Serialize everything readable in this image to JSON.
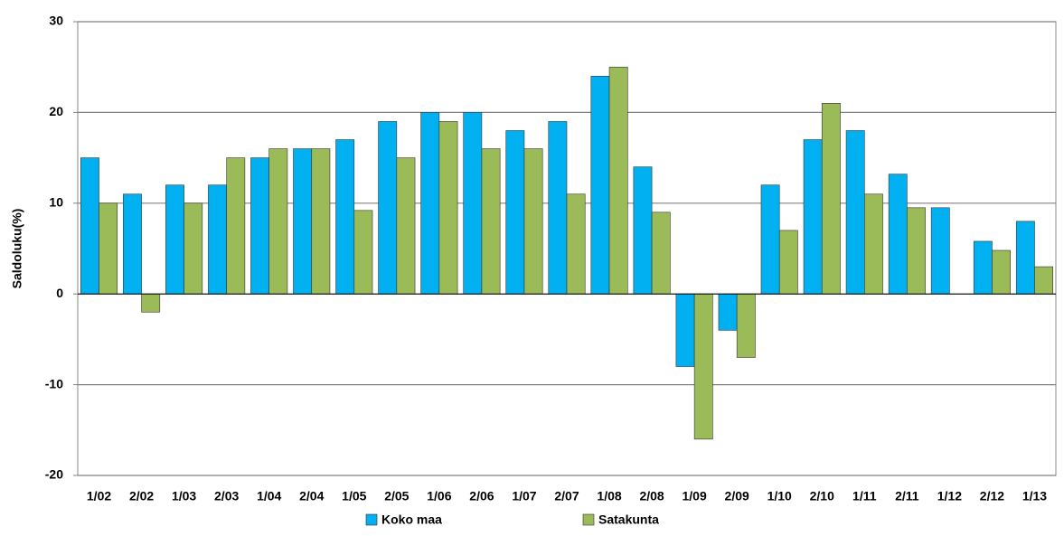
{
  "chart_data": {
    "type": "bar",
    "y_label": "Saldoluku(%)",
    "categories": [
      "1/02",
      "2/02",
      "1/03",
      "2/03",
      "1/04",
      "2/04",
      "1/05",
      "2/05",
      "1/06",
      "2/06",
      "1/07",
      "2/07",
      "1/08",
      "2/08",
      "1/09",
      "2/09",
      "1/10",
      "2/10",
      "1/11",
      "2/11",
      "1/12",
      "2/12",
      "1/13"
    ],
    "series": [
      {
        "name": "Koko maa",
        "color": "#00b0f0",
        "values": [
          15,
          11,
          12,
          12,
          15,
          16,
          17,
          19,
          20,
          20,
          18,
          19,
          24,
          14,
          -8,
          -4,
          12,
          17,
          18,
          13.2,
          9.5,
          5.8,
          8
        ]
      },
      {
        "name": "Satakunta",
        "color": "#9bbb59",
        "values": [
          10,
          -2,
          10,
          15,
          16,
          16,
          9.2,
          15,
          19,
          16,
          16,
          11,
          25,
          9,
          -16,
          -7,
          7,
          21,
          11,
          9.5,
          null,
          4.8,
          3
        ]
      }
    ],
    "ylim": [
      -20,
      30
    ],
    "yticks": [
      -20,
      -10,
      0,
      10,
      20,
      30
    ],
    "grid": true,
    "legend": "bottom"
  }
}
